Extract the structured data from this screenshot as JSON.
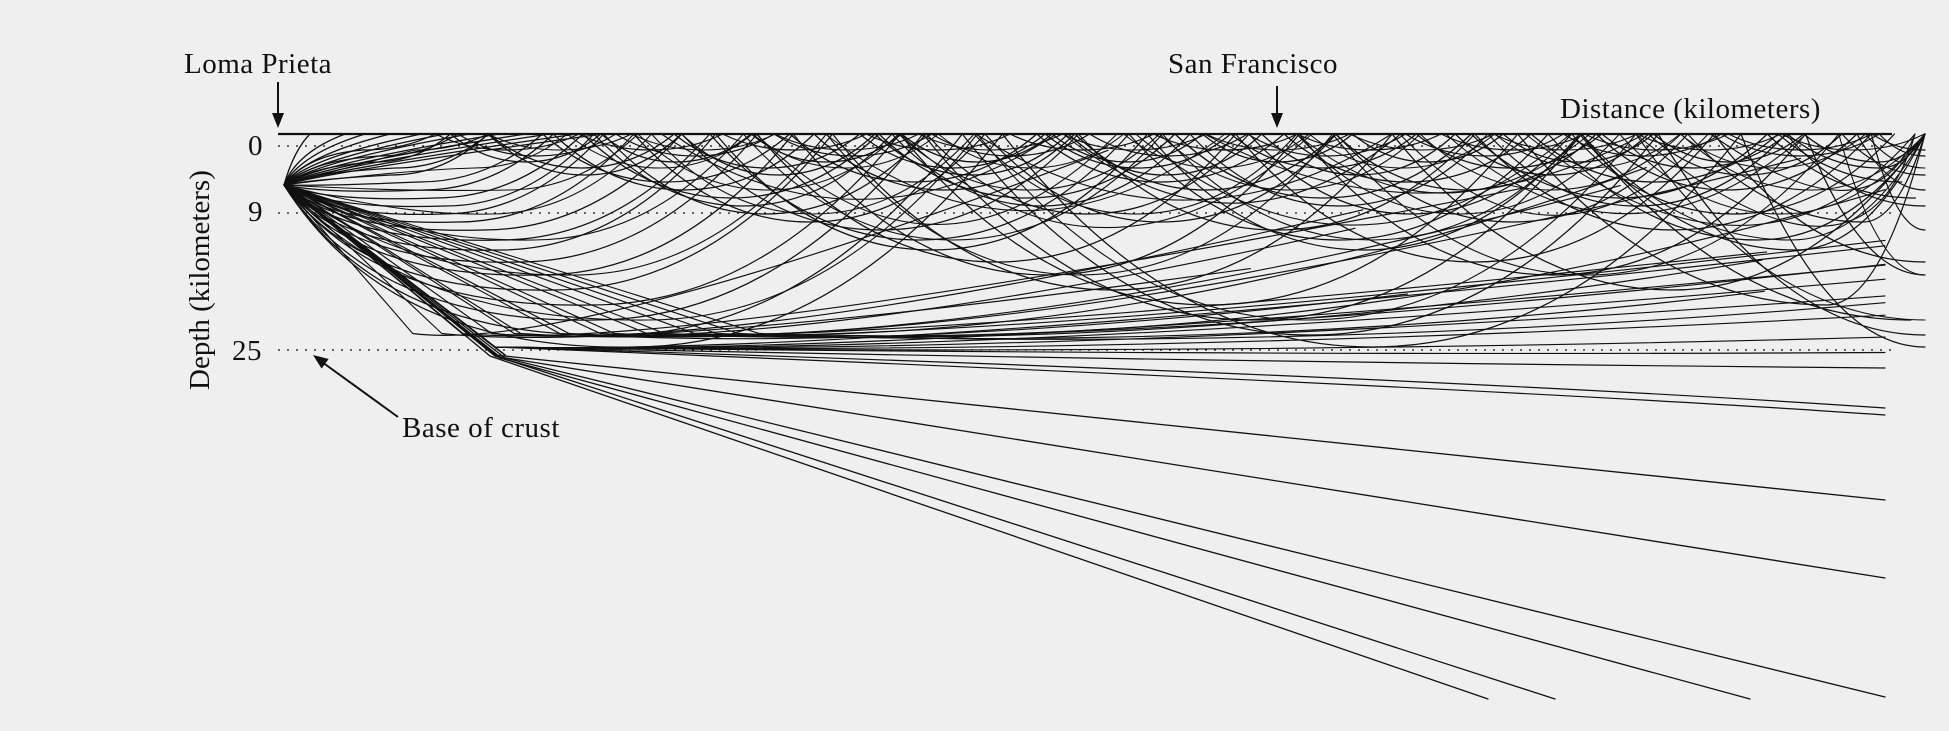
{
  "labels": {
    "epicenter": "Loma  Prieta",
    "city": "San Francisco",
    "distance_axis": "Distance (kilometers)",
    "depth_axis": "Depth (kilometers)",
    "base_of_crust": "Base of crust"
  },
  "depth_ticks": [
    "0",
    "9",
    "25"
  ],
  "colors": {
    "background": "#efefef",
    "ink": "#111111"
  }
}
